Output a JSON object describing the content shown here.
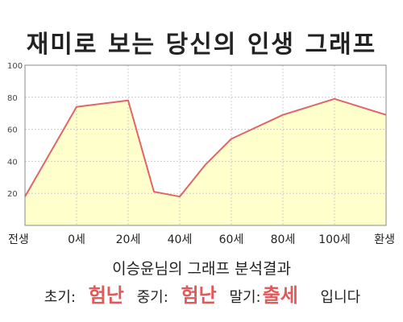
{
  "title": "재미로 보는 당신의 인생 그래프",
  "chart_data": {
    "type": "area",
    "title": "재미로 보는 당신의 인생 그래프",
    "x_labels": [
      "전생",
      "0세",
      "20세",
      "40세",
      "60세",
      "80세",
      "100세",
      "환생"
    ],
    "points": [
      {
        "x": "전생",
        "y": 18
      },
      {
        "x": "0세",
        "y": 74
      },
      {
        "x": "20세",
        "y": 78
      },
      {
        "x": "30세",
        "y": 21
      },
      {
        "x": "40세",
        "y": 18
      },
      {
        "x": "50세",
        "y": 38
      },
      {
        "x": "60세",
        "y": 54
      },
      {
        "x": "80세",
        "y": 69
      },
      {
        "x": "100세",
        "y": 79
      },
      {
        "x": "환생",
        "y": 69
      }
    ],
    "ylim": [
      0,
      100
    ],
    "yticks": [
      20,
      40,
      60,
      80,
      100
    ],
    "grid": true,
    "line_color": "#e06666",
    "fill_color": "#ffffcc"
  },
  "result": {
    "heading": "이승윤님의 그래프 분석결과",
    "early_label": "초기:",
    "early_value": "험난",
    "mid_label": "중기:",
    "mid_value": "험난",
    "late_label": "말기:",
    "late_value": "출세",
    "ending": "입니다"
  }
}
